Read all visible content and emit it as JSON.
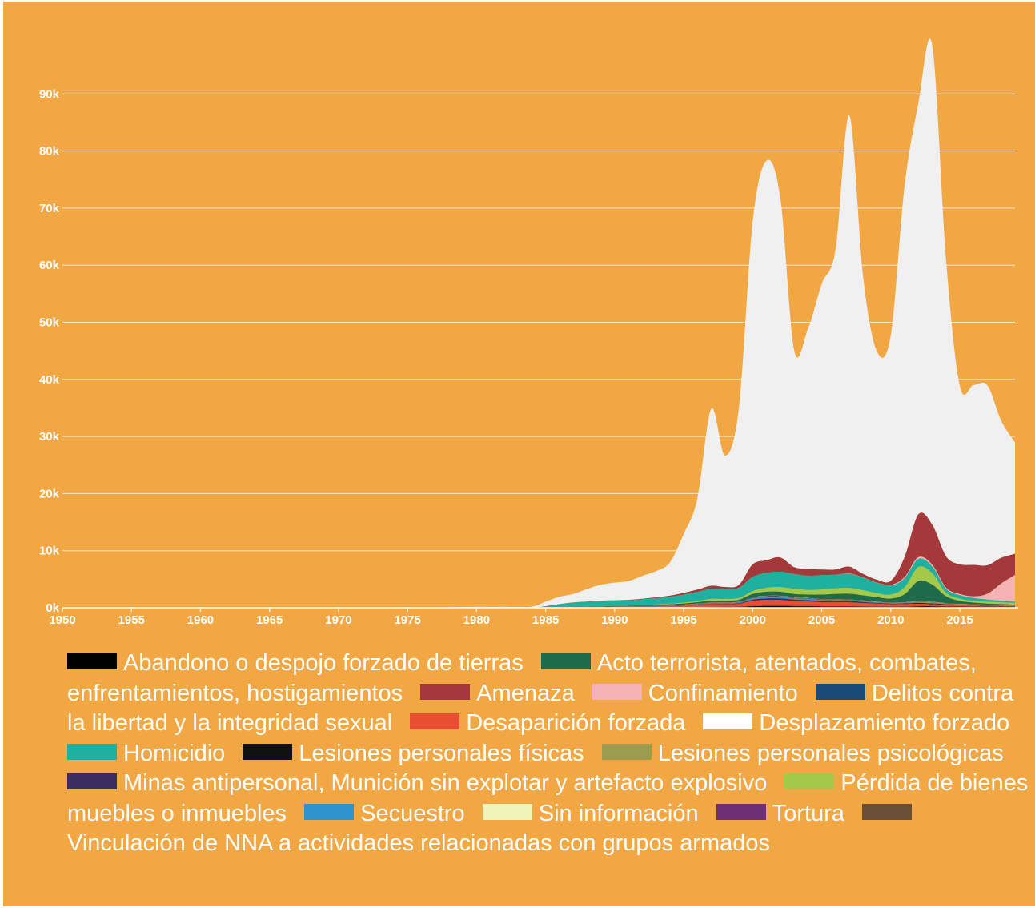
{
  "chart_data": {
    "type": "area",
    "stacked": true,
    "xlim": [
      1950,
      2019
    ],
    "ylim": [
      0,
      100000
    ],
    "x_ticks": [
      "1950",
      "1955",
      "1960",
      "1965",
      "1970",
      "1975",
      "1980",
      "1985",
      "1990",
      "1995",
      "2000",
      "2005",
      "2010",
      "2015"
    ],
    "y_ticks": [
      {
        "value": 0,
        "label": "0k"
      },
      {
        "value": 10000,
        "label": "10k"
      },
      {
        "value": 20000,
        "label": "20k"
      },
      {
        "value": 30000,
        "label": "30k"
      },
      {
        "value": 40000,
        "label": "40k"
      },
      {
        "value": 50000,
        "label": "50k"
      },
      {
        "value": 60000,
        "label": "60k"
      },
      {
        "value": 70000,
        "label": "70k"
      },
      {
        "value": 80000,
        "label": "80k"
      },
      {
        "value": 90000,
        "label": "90k"
      }
    ],
    "grid": "horizontal",
    "legend_position": "bottom",
    "years": [
      1950,
      1975,
      1978,
      1980,
      1982,
      1984,
      1985,
      1986,
      1987,
      1988,
      1989,
      1990,
      1991,
      1992,
      1993,
      1994,
      1995,
      1996,
      1997,
      1998,
      1999,
      2000,
      2001,
      2002,
      2003,
      2004,
      2005,
      2006,
      2007,
      2008,
      2009,
      2010,
      2011,
      2012,
      2013,
      2014,
      2015,
      2016,
      2017,
      2018,
      2019
    ],
    "series": [
      {
        "name": "Abandono o despojo forzado de tierras",
        "color": "#000000",
        "values": [
          0,
          0,
          0,
          0,
          0,
          0,
          0,
          0,
          10,
          10,
          20,
          20,
          30,
          30,
          40,
          50,
          60,
          80,
          120,
          150,
          160,
          250,
          300,
          300,
          250,
          250,
          200,
          200,
          200,
          180,
          150,
          150,
          150,
          200,
          200,
          150,
          120,
          100,
          100,
          100,
          80
        ]
      },
      {
        "name": "Delitos contra la libertad y la integridad sexual",
        "color": "#1a4a78",
        "values": [
          0,
          0,
          0,
          0,
          0,
          0,
          0,
          0,
          0,
          0,
          0,
          0,
          10,
          10,
          10,
          10,
          20,
          20,
          30,
          30,
          30,
          50,
          60,
          60,
          60,
          60,
          60,
          60,
          60,
          60,
          60,
          60,
          80,
          100,
          120,
          120,
          150,
          150,
          150,
          150,
          150
        ]
      },
      {
        "name": "Desaparición forzada",
        "color": "#e94e32",
        "values": [
          0,
          0,
          0,
          0,
          0,
          0,
          50,
          80,
          100,
          120,
          130,
          150,
          150,
          180,
          200,
          250,
          300,
          400,
          500,
          450,
          500,
          900,
          1000,
          1000,
          900,
          800,
          700,
          700,
          700,
          600,
          500,
          400,
          400,
          400,
          300,
          250,
          200,
          150,
          100,
          80,
          60
        ]
      },
      {
        "name": "Lesiones personales físicas",
        "color": "#111111",
        "values": [
          0,
          0,
          0,
          0,
          0,
          0,
          0,
          0,
          0,
          0,
          0,
          0,
          0,
          0,
          0,
          0,
          10,
          10,
          10,
          10,
          10,
          20,
          30,
          30,
          30,
          30,
          30,
          30,
          30,
          30,
          30,
          30,
          50,
          80,
          80,
          50,
          40,
          40,
          40,
          30,
          30
        ]
      },
      {
        "name": "Minas antipersonal, Munición sin explotar y artefacto explosivo",
        "color": "#3a2c5e",
        "values": [
          0,
          0,
          0,
          0,
          0,
          0,
          0,
          0,
          10,
          10,
          10,
          20,
          20,
          30,
          30,
          40,
          50,
          60,
          80,
          90,
          100,
          200,
          250,
          250,
          200,
          200,
          200,
          200,
          200,
          150,
          120,
          100,
          100,
          100,
          80,
          60,
          50,
          40,
          30,
          20,
          20
        ]
      },
      {
        "name": "Lesiones personales psicológicas",
        "color": "#9c9c4e",
        "values": [
          0,
          0,
          0,
          0,
          0,
          0,
          0,
          0,
          0,
          0,
          0,
          0,
          0,
          0,
          0,
          0,
          10,
          10,
          10,
          10,
          10,
          20,
          30,
          30,
          30,
          30,
          30,
          30,
          30,
          30,
          30,
          30,
          50,
          100,
          120,
          80,
          60,
          50,
          50,
          40,
          30
        ]
      },
      {
        "name": "Secuestro",
        "color": "#2f94cd",
        "values": [
          0,
          0,
          0,
          0,
          0,
          0,
          0,
          0,
          10,
          10,
          20,
          20,
          30,
          30,
          40,
          50,
          60,
          80,
          100,
          100,
          120,
          200,
          250,
          250,
          200,
          200,
          150,
          150,
          120,
          100,
          80,
          60,
          60,
          60,
          40,
          30,
          20,
          20,
          20,
          20,
          20
        ]
      },
      {
        "name": "Tortura",
        "color": "#6e2f74",
        "values": [
          0,
          0,
          0,
          0,
          0,
          0,
          0,
          0,
          10,
          10,
          10,
          10,
          10,
          10,
          20,
          20,
          20,
          30,
          40,
          40,
          40,
          60,
          80,
          80,
          60,
          60,
          50,
          50,
          40,
          40,
          30,
          30,
          30,
          40,
          40,
          30,
          20,
          20,
          20,
          20,
          20
        ]
      },
      {
        "name": "Vinculación de NNA a actividades relacionadas con grupos armados",
        "color": "#6b4e36",
        "values": [
          0,
          0,
          0,
          0,
          0,
          0,
          0,
          0,
          0,
          0,
          0,
          10,
          10,
          10,
          10,
          20,
          20,
          30,
          40,
          50,
          60,
          80,
          80,
          80,
          70,
          60,
          60,
          60,
          50,
          50,
          40,
          30,
          30,
          40,
          40,
          30,
          20,
          20,
          20,
          20,
          20
        ]
      },
      {
        "name": "Sin información",
        "color": "#f1f3b8",
        "values": [
          0,
          0,
          0,
          0,
          0,
          0,
          0,
          0,
          0,
          0,
          0,
          0,
          0,
          0,
          0,
          0,
          10,
          10,
          20,
          20,
          20,
          30,
          30,
          30,
          30,
          30,
          30,
          30,
          30,
          30,
          20,
          20,
          20,
          30,
          30,
          20,
          20,
          20,
          20,
          20,
          20
        ]
      },
      {
        "name": "Acto terrorista, atentados, combates, enfrentamientos, hostigamientos",
        "color": "#1e6b4b",
        "values": [
          0,
          0,
          0,
          0,
          0,
          0,
          20,
          30,
          40,
          50,
          60,
          80,
          100,
          120,
          150,
          180,
          200,
          250,
          300,
          300,
          350,
          600,
          700,
          700,
          600,
          600,
          800,
          900,
          1000,
          900,
          800,
          700,
          1400,
          3500,
          3000,
          1200,
          500,
          300,
          200,
          150,
          100
        ]
      },
      {
        "name": "Pérdida de bienes muebles o inmuebles",
        "color": "#a3c84a",
        "values": [
          0,
          0,
          0,
          0,
          0,
          0,
          0,
          10,
          20,
          30,
          30,
          40,
          50,
          60,
          80,
          100,
          150,
          200,
          300,
          300,
          300,
          500,
          700,
          800,
          900,
          800,
          900,
          1000,
          1000,
          900,
          700,
          700,
          1200,
          2500,
          2000,
          600,
          400,
          300,
          300,
          300,
          300
        ]
      },
      {
        "name": "Homicidio",
        "color": "#1eb1a0",
        "values": [
          0,
          0,
          0,
          0,
          0,
          0,
          200,
          500,
          700,
          800,
          900,
          900,
          900,
          1000,
          1100,
          1200,
          1400,
          1600,
          1800,
          1700,
          1800,
          2500,
          2600,
          2700,
          2600,
          2500,
          2500,
          2400,
          2500,
          2200,
          1800,
          1600,
          1600,
          1400,
          1200,
          700,
          600,
          500,
          400,
          300,
          200
        ]
      },
      {
        "name": "Confinamiento",
        "color": "#f5b2b4",
        "values": [
          0,
          0,
          0,
          0,
          0,
          0,
          0,
          0,
          0,
          0,
          0,
          0,
          0,
          0,
          0,
          0,
          0,
          0,
          0,
          0,
          0,
          0,
          0,
          0,
          0,
          0,
          0,
          0,
          50,
          50,
          50,
          100,
          200,
          300,
          300,
          200,
          200,
          300,
          1000,
          3000,
          4700
        ]
      },
      {
        "name": "Amenaza",
        "color": "#a3393a",
        "values": [
          0,
          0,
          0,
          0,
          0,
          0,
          10,
          20,
          30,
          40,
          50,
          60,
          80,
          100,
          150,
          200,
          300,
          400,
          500,
          400,
          500,
          2200,
          2200,
          2500,
          1200,
          1200,
          1000,
          900,
          1200,
          600,
          500,
          700,
          3500,
          7500,
          7000,
          5500,
          5200,
          5500,
          5000,
          4500,
          3700
        ]
      },
      {
        "name": "Desplazamiento forzado",
        "color": "#f0f0f0",
        "values": [
          0,
          50,
          100,
          150,
          150,
          200,
          800,
          1300,
          1500,
          2200,
          2800,
          3100,
          3300,
          4000,
          4600,
          5800,
          10300,
          16000,
          31000,
          23000,
          31000,
          60000,
          70000,
          63000,
          38000,
          42000,
          50000,
          56000,
          79000,
          52000,
          40000,
          43000,
          65000,
          72000,
          84000,
          52000,
          31300,
          31500,
          31500,
          24000,
          19500
        ]
      }
    ]
  },
  "legend": [
    {
      "label": "Abandono o despojo forzado de tierras",
      "color": "#000000",
      "icon": "black-swatch"
    },
    {
      "label": "Acto terrorista, atentados, combates, enfrentamientos, hostigamientos",
      "color": "#1e6b4b",
      "icon": "dark-green-swatch"
    },
    {
      "label": "Amenaza",
      "color": "#a3393a",
      "icon": "dark-red-swatch"
    },
    {
      "label": "Confinamiento",
      "color": "#f5b2b4",
      "icon": "pink-swatch"
    },
    {
      "label": "Delitos contra la libertad y la integridad sexual",
      "color": "#1a4a78",
      "icon": "navy-swatch"
    },
    {
      "label": "Desaparición forzada",
      "color": "#e94e32",
      "icon": "orange-red-swatch"
    },
    {
      "label": "Desplazamiento forzado",
      "color": "#ffffff",
      "icon": "white-swatch"
    },
    {
      "label": "Homicidio",
      "color": "#1eb1a0",
      "icon": "teal-swatch"
    },
    {
      "label": "Lesiones personales físicas",
      "color": "#111111",
      "icon": "black-swatch"
    },
    {
      "label": "Lesiones personales psicológicas",
      "color": "#9c9c4e",
      "icon": "olive-swatch"
    },
    {
      "label": "Minas antipersonal, Munición sin explotar y artefacto explosivo",
      "color": "#3a2c5e",
      "icon": "dark-purple-swatch"
    },
    {
      "label": "Pérdida de bienes muebles o inmuebles",
      "color": "#a3c84a",
      "icon": "light-green-swatch"
    },
    {
      "label": "Secuestro",
      "color": "#2f94cd",
      "icon": "blue-swatch"
    },
    {
      "label": "Sin información",
      "color": "#f1f3b8",
      "icon": "pale-yellow-swatch"
    },
    {
      "label": "Tortura",
      "color": "#6e2f74",
      "icon": "purple-swatch"
    },
    {
      "label": "Vinculación de NNA a actividades relacionadas con grupos armados",
      "color": "#6b4e36",
      "icon": "brown-swatch"
    }
  ],
  "colors": {
    "background": "#f2a745",
    "gridline": "#ffffff",
    "text": "#ffffff"
  }
}
